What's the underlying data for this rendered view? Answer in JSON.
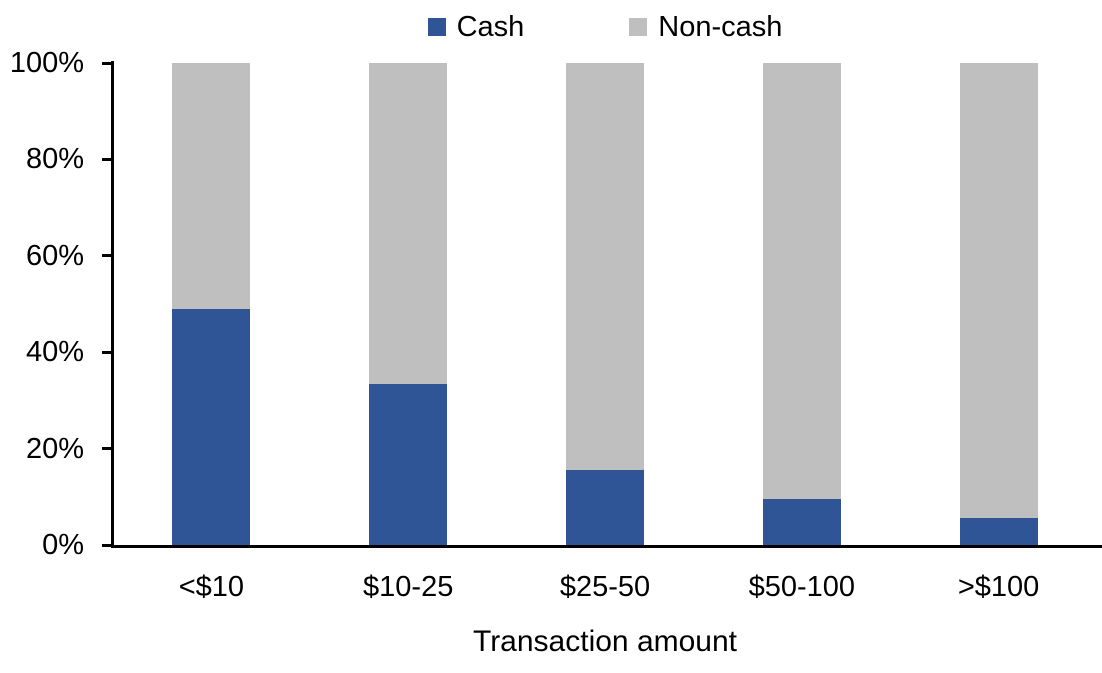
{
  "chart_data": {
    "type": "bar",
    "stacked": true,
    "percent_stacked": true,
    "title": "",
    "xlabel": "Transaction amount",
    "ylabel": "",
    "categories": [
      "<$10",
      "$10-25",
      "$25-50",
      "$50-100",
      ">$100"
    ],
    "series": [
      {
        "name": "Cash",
        "color": "#2F5597",
        "values": [
          49,
          33.5,
          15.5,
          9.5,
          5.5
        ]
      },
      {
        "name": "Non-cash",
        "color": "#BFBFBF",
        "values": [
          51,
          66.5,
          84.5,
          90.5,
          94.5
        ]
      }
    ],
    "ylim": [
      0,
      100
    ],
    "yticks": [
      "0%",
      "20%",
      "40%",
      "60%",
      "80%",
      "100%"
    ],
    "legend_position": "top",
    "grid": false,
    "axis_color": "#000000",
    "text_color": "#000000"
  }
}
